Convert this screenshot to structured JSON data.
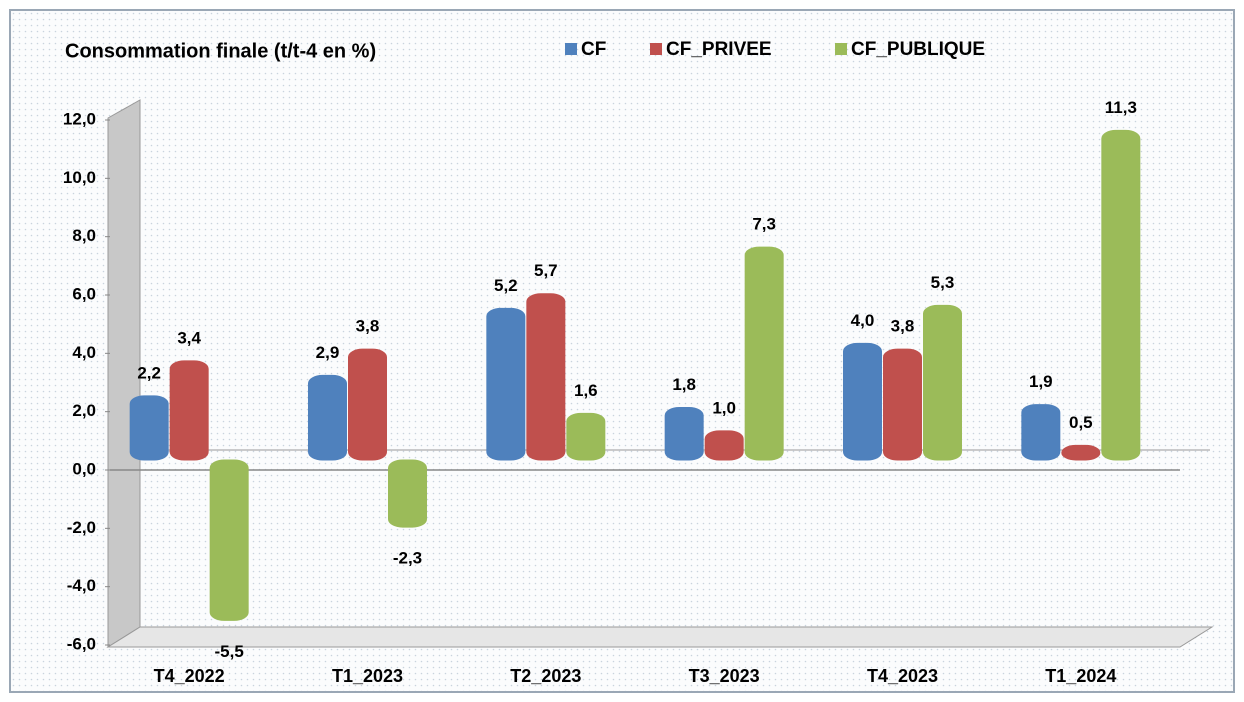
{
  "chart_data": {
    "type": "bar",
    "title": "Consommation finale (t/t-4 en %)",
    "categories": [
      "T4_2022",
      "T1_2023",
      "T2_2023",
      "T3_2023",
      "T4_2023",
      "T1_2024"
    ],
    "series": [
      {
        "name": "CF",
        "color": "#4f81bd",
        "values": [
          2.2,
          2.9,
          5.2,
          1.8,
          4.0,
          1.9
        ],
        "value_labels": [
          "2,2",
          "2,9",
          "5,2",
          "1,8",
          "4,0",
          "1,9"
        ]
      },
      {
        "name": "CF_PRIVEE",
        "color": "#c0504d",
        "values": [
          3.4,
          3.8,
          5.7,
          1.0,
          3.8,
          0.5
        ],
        "value_labels": [
          "3,4",
          "3,8",
          "5,7",
          "1,0",
          "3,8",
          "0,5"
        ]
      },
      {
        "name": "CF_PUBLIQUE",
        "color": "#9bbb59",
        "values": [
          -5.5,
          -2.3,
          1.6,
          7.3,
          5.3,
          11.3
        ],
        "value_labels": [
          "-5,5",
          "-2,3",
          "1,6",
          "7,3",
          "5,3",
          "11,3"
        ]
      }
    ],
    "ylim": [
      -6,
      12
    ],
    "yticks": [
      {
        "value": -6,
        "label": "-6,0"
      },
      {
        "value": -4,
        "label": "-4,0"
      },
      {
        "value": -2,
        "label": "-2,0"
      },
      {
        "value": 0,
        "label": "0,0"
      },
      {
        "value": 2,
        "label": "2,0"
      },
      {
        "value": 4,
        "label": "4,0"
      },
      {
        "value": 6,
        "label": "6,0"
      },
      {
        "value": 8,
        "label": "8,0"
      },
      {
        "value": 10,
        "label": "10,0"
      },
      {
        "value": 12,
        "label": "12,0"
      }
    ],
    "legend": "top"
  }
}
